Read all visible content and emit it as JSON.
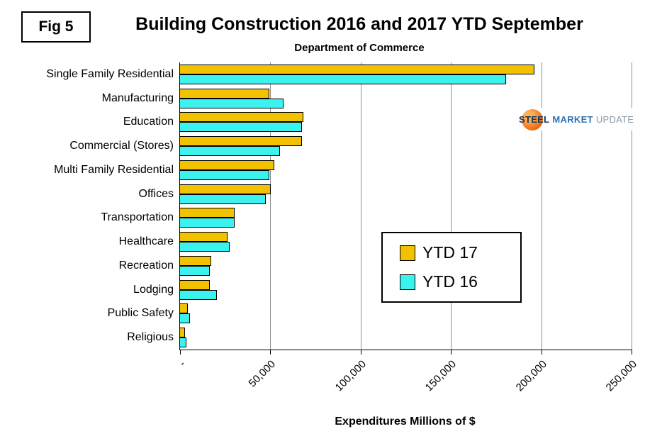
{
  "figure": {
    "label": "Fig 5"
  },
  "logo": {
    "part1": "STEEL",
    "part2": "MARKET",
    "part3": "UPDATE"
  },
  "chart_data": {
    "type": "bar",
    "orientation": "horizontal",
    "title": "Building Construction 2016 and 2017 YTD September",
    "subtitle": "Department of Commerce",
    "xlabel": "Expenditures Millions of $",
    "xlim": [
      0,
      250000
    ],
    "grid": true,
    "legend_position": "center-right",
    "x_ticks": [
      {
        "value": 0,
        "label": "-"
      },
      {
        "value": 50000,
        "label": "50,000"
      },
      {
        "value": 100000,
        "label": "100,000"
      },
      {
        "value": 150000,
        "label": "150,000"
      },
      {
        "value": 200000,
        "label": "200,000"
      },
      {
        "value": 250000,
        "label": "250,000"
      }
    ],
    "categories": [
      "Single Family Residential",
      "Manufacturing",
      "Education",
      "Commercial (Stores)",
      "Multi Family Residential",
      "Offices",
      "Transportation",
      "Healthcare",
      "Recreation",
      "Lodging",
      "Public Safety",
      "Religious"
    ],
    "series": [
      {
        "name": "YTD 17",
        "color": "#f2c100",
        "values": [
          196000,
          49000,
          68000,
          67000,
          52000,
          50000,
          30000,
          26000,
          17000,
          16000,
          4000,
          2500
        ]
      },
      {
        "name": "YTD 16",
        "color": "#3bf2ee",
        "values": [
          180000,
          57000,
          67000,
          55000,
          49000,
          47000,
          30000,
          27000,
          16000,
          20000,
          5000,
          3000
        ]
      }
    ]
  }
}
